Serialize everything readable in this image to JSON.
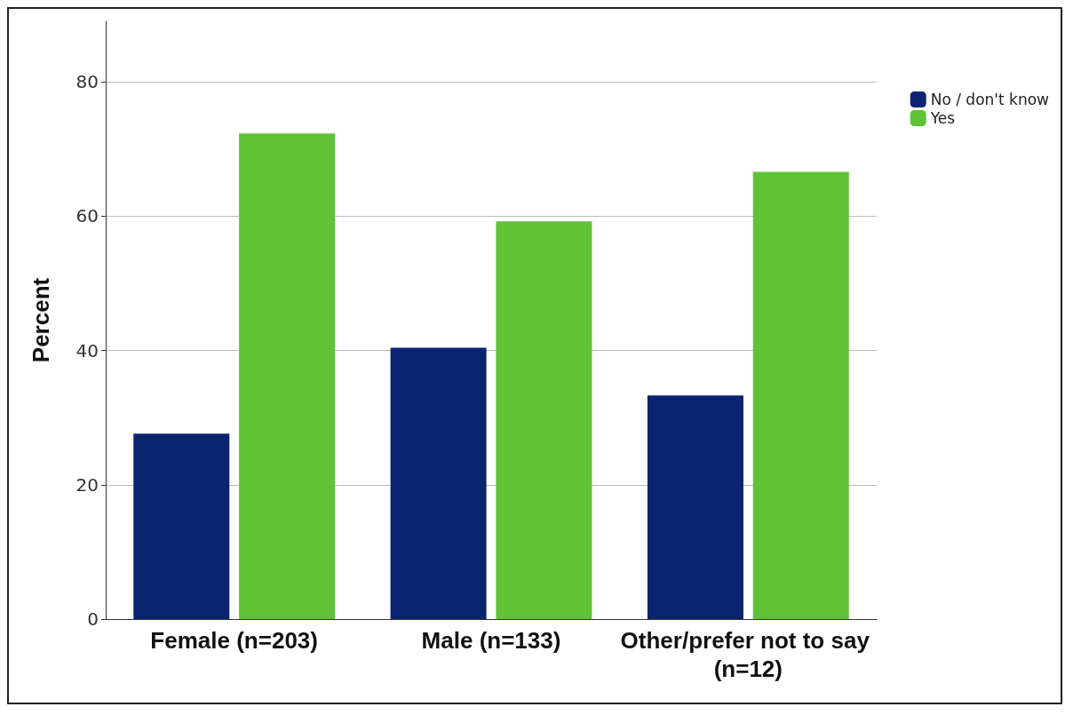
{
  "chart_data": {
    "type": "bar",
    "ylabel": "Percent",
    "categories": [
      "Female (n=203)",
      "Male (n=133)",
      "Other/prefer not to say (n=12)"
    ],
    "series": [
      {
        "name": "No / don't know",
        "color": "#0b2470",
        "values": [
          27.6,
          40.4,
          33.3
        ]
      },
      {
        "name": "Yes",
        "color": "#60c336",
        "values": [
          72.3,
          59.2,
          66.6
        ]
      }
    ],
    "ylim": [
      0,
      89
    ],
    "yticks": [
      0,
      20,
      40,
      60,
      80
    ],
    "grid": "y",
    "legend": "top right"
  }
}
